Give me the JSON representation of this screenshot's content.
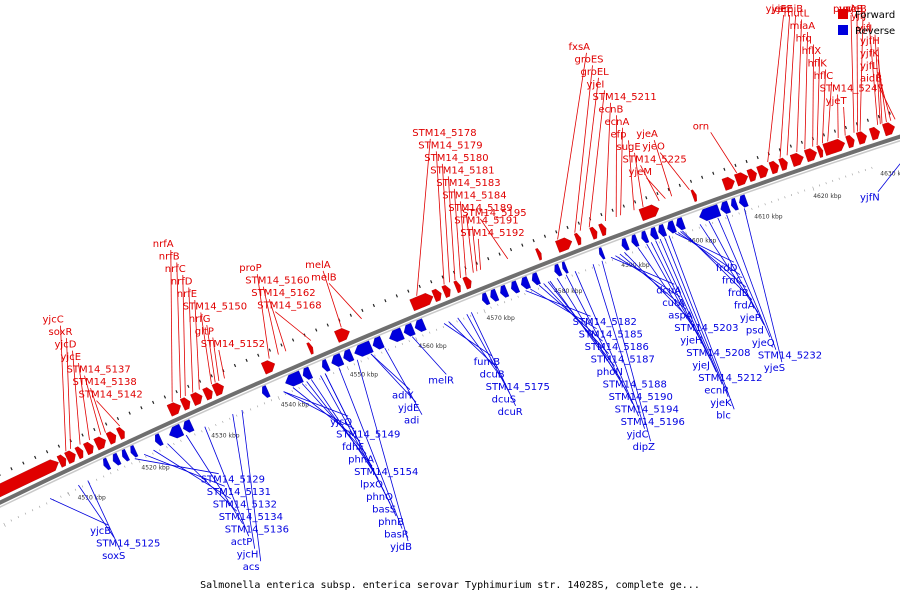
{
  "title": "Salmonella enterica subsp. enterica serovar Typhimurium str. 14028S, complete ge...",
  "legend": {
    "forward": "Forward",
    "reverse": "Reverse"
  },
  "colors": {
    "forward": "#e00000",
    "reverse": "#0000dd",
    "backbone": "#6f6f6f"
  },
  "ticks": [
    {
      "label": "4510 kbp",
      "t": 0.075
    },
    {
      "label": "4520 kbp",
      "t": 0.143
    },
    {
      "label": "4530 kbp",
      "t": 0.218
    },
    {
      "label": "4540 kbp",
      "t": 0.293
    },
    {
      "label": "4550 kbp",
      "t": 0.368
    },
    {
      "label": "4560 kbp",
      "t": 0.443
    },
    {
      "label": "4570 kbp",
      "t": 0.518
    },
    {
      "label": "4580 kbp",
      "t": 0.593
    },
    {
      "label": "4590 kbp",
      "t": 0.668
    },
    {
      "label": "4600 kbp",
      "t": 0.743
    },
    {
      "label": "4610 kbp",
      "t": 0.818
    },
    {
      "label": "4620 kbp",
      "t": 0.885
    },
    {
      "label": "4630 kbp",
      "t": 0.962
    }
  ],
  "forward_genes": [
    {
      "s": 0.0,
      "e": 0.072
    },
    {
      "s": 0.073,
      "e": 0.08
    },
    {
      "s": 0.081,
      "e": 0.09
    },
    {
      "s": 0.092,
      "e": 0.098
    },
    {
      "s": 0.101,
      "e": 0.109
    },
    {
      "s": 0.112,
      "e": 0.122
    },
    {
      "s": 0.125,
      "e": 0.133
    },
    {
      "s": 0.136,
      "e": 0.142
    },
    {
      "s": 0.19,
      "e": 0.202
    },
    {
      "s": 0.204,
      "e": 0.212
    },
    {
      "s": 0.215,
      "e": 0.225
    },
    {
      "s": 0.228,
      "e": 0.236
    },
    {
      "s": 0.238,
      "e": 0.248
    },
    {
      "s": 0.291,
      "e": 0.303
    },
    {
      "s": 0.34,
      "e": 0.344
    },
    {
      "s": 0.37,
      "e": 0.384
    },
    {
      "s": 0.452,
      "e": 0.475
    },
    {
      "s": 0.476,
      "e": 0.484
    },
    {
      "s": 0.487,
      "e": 0.494
    },
    {
      "s": 0.5,
      "e": 0.505
    },
    {
      "s": 0.51,
      "e": 0.517
    },
    {
      "s": 0.59,
      "e": 0.594
    },
    {
      "s": 0.612,
      "e": 0.628
    },
    {
      "s": 0.633,
      "e": 0.638
    },
    {
      "s": 0.65,
      "e": 0.656
    },
    {
      "s": 0.66,
      "e": 0.666
    },
    {
      "s": 0.705,
      "e": 0.725
    },
    {
      "s": 0.763,
      "e": 0.767
    },
    {
      "s": 0.798,
      "e": 0.81
    },
    {
      "s": 0.812,
      "e": 0.825
    },
    {
      "s": 0.826,
      "e": 0.835
    },
    {
      "s": 0.837,
      "e": 0.848
    },
    {
      "s": 0.851,
      "e": 0.86
    },
    {
      "s": 0.862,
      "e": 0.87
    },
    {
      "s": 0.875,
      "e": 0.888
    },
    {
      "s": 0.891,
      "e": 0.903
    },
    {
      "s": 0.905,
      "e": 0.91
    },
    {
      "s": 0.912,
      "e": 0.935
    },
    {
      "s": 0.938,
      "e": 0.946
    },
    {
      "s": 0.95,
      "e": 0.96
    },
    {
      "s": 0.965,
      "e": 0.975
    },
    {
      "s": 0.98,
      "e": 0.992
    }
  ],
  "reverse_genes": [
    {
      "s": 0.11,
      "e": 0.115
    },
    {
      "s": 0.12,
      "e": 0.126
    },
    {
      "s": 0.13,
      "e": 0.135
    },
    {
      "s": 0.139,
      "e": 0.144
    },
    {
      "s": 0.165,
      "e": 0.171
    },
    {
      "s": 0.18,
      "e": 0.193
    },
    {
      "s": 0.195,
      "e": 0.204
    },
    {
      "s": 0.28,
      "e": 0.286
    },
    {
      "s": 0.305,
      "e": 0.322
    },
    {
      "s": 0.324,
      "e": 0.332
    },
    {
      "s": 0.345,
      "e": 0.351
    },
    {
      "s": 0.355,
      "e": 0.366
    },
    {
      "s": 0.368,
      "e": 0.377
    },
    {
      "s": 0.38,
      "e": 0.398
    },
    {
      "s": 0.4,
      "e": 0.41
    },
    {
      "s": 0.418,
      "e": 0.432
    },
    {
      "s": 0.434,
      "e": 0.444
    },
    {
      "s": 0.446,
      "e": 0.456
    },
    {
      "s": 0.52,
      "e": 0.526
    },
    {
      "s": 0.529,
      "e": 0.536
    },
    {
      "s": 0.54,
      "e": 0.547
    },
    {
      "s": 0.552,
      "e": 0.559
    },
    {
      "s": 0.563,
      "e": 0.571
    },
    {
      "s": 0.575,
      "e": 0.582
    },
    {
      "s": 0.6,
      "e": 0.606
    },
    {
      "s": 0.609,
      "e": 0.613
    },
    {
      "s": 0.65,
      "e": 0.654
    },
    {
      "s": 0.675,
      "e": 0.681
    },
    {
      "s": 0.686,
      "e": 0.692
    },
    {
      "s": 0.697,
      "e": 0.703
    },
    {
      "s": 0.707,
      "e": 0.714
    },
    {
      "s": 0.716,
      "e": 0.723
    },
    {
      "s": 0.726,
      "e": 0.734
    },
    {
      "s": 0.736,
      "e": 0.744
    },
    {
      "s": 0.762,
      "e": 0.784
    },
    {
      "s": 0.786,
      "e": 0.795
    },
    {
      "s": 0.798,
      "e": 0.804
    },
    {
      "s": 0.807,
      "e": 0.815
    },
    {
      "s": 0.998,
      "e": 1.0
    }
  ],
  "forward_labels": [
    {
      "text": "yjeB",
      "t": 0.955
    },
    {
      "text": "purA",
      "t": 0.948
    },
    {
      "text": "STM14_5247",
      "t": 0.93
    },
    {
      "text": "yjfJ",
      "t": 0.975
    },
    {
      "text": "hflX",
      "t": 0.906
    },
    {
      "text": "yjeT",
      "t": 0.938
    },
    {
      "text": "yjfI",
      "t": 0.978
    },
    {
      "text": "miaA",
      "t": 0.892
    },
    {
      "text": "hflK",
      "t": 0.912
    },
    {
      "text": "yjfH",
      "t": 0.98
    },
    {
      "text": "mutL",
      "t": 0.883
    },
    {
      "text": "vacB",
      "t": 0.952
    },
    {
      "text": "yjfL",
      "t": 0.99
    },
    {
      "text": "amiB",
      "t": 0.872
    },
    {
      "text": "hfq",
      "t": 0.901
    },
    {
      "text": "hflC",
      "t": 0.918
    },
    {
      "text": "yjfK",
      "t": 0.985
    },
    {
      "text": "aidB",
      "t": 0.995
    },
    {
      "text": "yjeE",
      "t": 0.864
    },
    {
      "text": "yjeF",
      "t": 0.85
    },
    {
      "text": "orn",
      "t": 0.815
    },
    {
      "text": "ecnB",
      "t": 0.68
    },
    {
      "text": "yjeM",
      "t": 0.735
    },
    {
      "text": "STM14_5211",
      "t": 0.668
    },
    {
      "text": "STM14_5225",
      "t": 0.728
    },
    {
      "text": "yjeI",
      "t": 0.65
    },
    {
      "text": "yjeA",
      "t": 0.742
    },
    {
      "text": "yjeO",
      "t": 0.762
    },
    {
      "text": "groEL",
      "t": 0.64
    },
    {
      "text": "ecnA",
      "t": 0.685
    },
    {
      "text": "efp",
      "t": 0.7
    },
    {
      "text": "groES",
      "t": 0.634
    },
    {
      "text": "sugE",
      "t": 0.71
    },
    {
      "text": "fxsA",
      "t": 0.615
    },
    {
      "text": "STM14_5192",
      "t": 0.53
    },
    {
      "text": "STM14_5191",
      "t": 0.526
    },
    {
      "text": "STM14_5189",
      "t": 0.522
    },
    {
      "text": "STM14_5184",
      "t": 0.514
    },
    {
      "text": "STM14_5183",
      "t": 0.508
    },
    {
      "text": "STM14_5181",
      "t": 0.502
    },
    {
      "text": "STM14_5180",
      "t": 0.496
    },
    {
      "text": "STM14_5179",
      "t": 0.49
    },
    {
      "text": "STM14_5178",
      "t": 0.46
    },
    {
      "text": "STM14_5195",
      "t": 0.56
    },
    {
      "text": "melA",
      "t": 0.378
    },
    {
      "text": "melB",
      "t": 0.4
    },
    {
      "text": "STM14_5150",
      "t": 0.238
    },
    {
      "text": "proP",
      "t": 0.3
    },
    {
      "text": "nrfE",
      "t": 0.225
    },
    {
      "text": "STM14_5160",
      "t": 0.31
    },
    {
      "text": "STM14_5168",
      "t": 0.345
    },
    {
      "text": "nrfD",
      "t": 0.218
    },
    {
      "text": "gltP",
      "t": 0.246
    },
    {
      "text": "STM14_5162",
      "t": 0.318
    },
    {
      "text": "nrfC",
      "t": 0.21
    },
    {
      "text": "nrfG",
      "t": 0.242
    },
    {
      "text": "STM14_5138",
      "t": 0.125
    },
    {
      "text": "nrfB",
      "t": 0.205
    },
    {
      "text": "STM14_5152",
      "t": 0.252
    },
    {
      "text": "STM14_5137",
      "t": 0.12
    },
    {
      "text": "nrfA",
      "t": 0.196
    },
    {
      "text": "yjcE",
      "t": 0.108
    },
    {
      "text": "yjcD",
      "t": 0.098
    },
    {
      "text": "STM14_5142",
      "t": 0.14
    },
    {
      "text": "soxR",
      "t": 0.088
    },
    {
      "text": "yjcC",
      "t": 0.083
    }
  ],
  "reverse_labels": [
    {
      "text": "yjfN",
      "t": 0.998
    },
    {
      "text": "yjeS",
      "t": 0.81
    },
    {
      "text": "STM14_5232",
      "t": 0.79
    },
    {
      "text": "yjeQ",
      "t": 0.78
    },
    {
      "text": "psd",
      "t": 0.77
    },
    {
      "text": "yjeP",
      "t": 0.76
    },
    {
      "text": "frdA",
      "t": 0.74
    },
    {
      "text": "ecnR",
      "t": 0.715
    },
    {
      "text": "blc",
      "t": 0.725
    },
    {
      "text": "yjeJ",
      "t": 0.705
    },
    {
      "text": "STM14_5212",
      "t": 0.71
    },
    {
      "text": "frdD",
      "t": 0.732
    },
    {
      "text": "yjeH",
      "t": 0.69
    },
    {
      "text": "STM14_5208",
      "t": 0.7
    },
    {
      "text": "frdC",
      "t": 0.735
    },
    {
      "text": "yjeK",
      "t": 0.72
    },
    {
      "text": "aspA",
      "t": 0.67
    },
    {
      "text": "dipZ",
      "t": 0.65
    },
    {
      "text": "frdB",
      "t": 0.738
    },
    {
      "text": "phoN",
      "t": 0.59
    },
    {
      "text": "yjdC",
      "t": 0.64
    },
    {
      "text": "dcuA",
      "t": 0.66
    },
    {
      "text": "STM14_5185",
      "t": 0.57
    },
    {
      "text": "STM14_5194",
      "t": 0.61
    },
    {
      "text": "cutA",
      "t": 0.665
    },
    {
      "text": "STM14_5182",
      "t": 0.565
    },
    {
      "text": "STM14_5186",
      "t": 0.58
    },
    {
      "text": "STM14_5203",
      "t": 0.675
    },
    {
      "text": "STM14_5187",
      "t": 0.585
    },
    {
      "text": "STM14_5188",
      "t": 0.592
    },
    {
      "text": "STM14_5190",
      "t": 0.6
    },
    {
      "text": "STM14_5196",
      "t": 0.62
    },
    {
      "text": "dcuS",
      "t": 0.5
    },
    {
      "text": "fumB",
      "t": 0.475
    },
    {
      "text": "dcuB",
      "t": 0.48
    },
    {
      "text": "STM14_5175",
      "t": 0.49
    },
    {
      "text": "dcuR",
      "t": 0.505
    },
    {
      "text": "melR",
      "t": 0.44
    },
    {
      "text": "adiY",
      "t": 0.395
    },
    {
      "text": "yjdB",
      "t": 0.38
    },
    {
      "text": "adi",
      "t": 0.41
    },
    {
      "text": "phnA",
      "t": 0.32
    },
    {
      "text": "basS",
      "t": 0.345
    },
    {
      "text": "lpxO",
      "t": 0.33
    },
    {
      "text": "basR",
      "t": 0.36
    },
    {
      "text": "yjcO",
      "t": 0.3
    },
    {
      "text": "phnO",
      "t": 0.34
    },
    {
      "text": "yjdE",
      "t": 0.395
    },
    {
      "text": "acs",
      "t": 0.255
    },
    {
      "text": "fdhF",
      "t": 0.31
    },
    {
      "text": "yjcH",
      "t": 0.245
    },
    {
      "text": "STM14_5149",
      "t": 0.3
    },
    {
      "text": "STM14_5154",
      "t": 0.325
    },
    {
      "text": "STM14_5134",
      "t": 0.175
    },
    {
      "text": "phnB",
      "t": 0.345
    },
    {
      "text": "STM14_5136",
      "t": 0.195
    },
    {
      "text": "STM14_5131",
      "t": 0.15
    },
    {
      "text": "actP",
      "t": 0.215
    },
    {
      "text": "STM14_5129",
      "t": 0.14
    },
    {
      "text": "STM14_5132",
      "t": 0.16
    },
    {
      "text": "soxS",
      "t": 0.09
    },
    {
      "text": "STM14_5125",
      "t": 0.08
    },
    {
      "text": "yjcB",
      "t": 0.05
    }
  ]
}
